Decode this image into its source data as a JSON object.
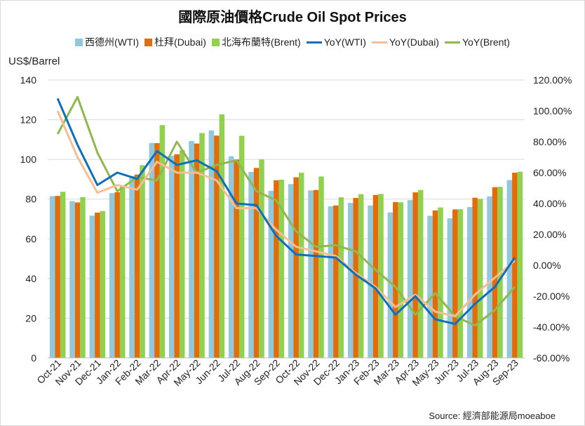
{
  "chart_data": {
    "type": "bar+line",
    "title": "國際原油價格Crude  Oil Spot Prices",
    "ylabel": "US$/Barrel",
    "source": "Source: 經濟部能源局moeaboe",
    "ylim": [
      0,
      140
    ],
    "yticks": [
      "0",
      "20",
      "40",
      "60",
      "80",
      "100",
      "120",
      "140"
    ],
    "y2lim": [
      -60,
      120
    ],
    "y2ticks": [
      "-60.00%",
      "-40.00%",
      "-20.00%",
      "0.00%",
      "20.00%",
      "40.00%",
      "60.00%",
      "80.00%",
      "100.00%",
      "120.00%"
    ],
    "grid": true,
    "legend": "top",
    "categories": [
      "Oct-21",
      "Nov-21",
      "Dec-21",
      "Jan-22",
      "Feb-22",
      "Mar-22",
      "Apr-22",
      "May-22",
      "Jun-22",
      "Jul-22",
      "Aug-22",
      "Sep-22",
      "Oct-22",
      "Nov-22",
      "Dec-22",
      "Jan-23",
      "Feb-23",
      "Mar-23",
      "Apr-23",
      "May-23",
      "Jun-23",
      "Jul-23",
      "Aug-23",
      "Sep-23"
    ],
    "bar_series": [
      {
        "name": "西德州(WTI)",
        "color": "#92c8dc",
        "values": [
          81.5,
          79,
          71.7,
          83,
          91.6,
          108.3,
          101.8,
          109.3,
          114.6,
          101.6,
          93.7,
          84.2,
          87.6,
          84.4,
          76.4,
          78.1,
          76.8,
          73.3,
          79.5,
          71.6,
          70.3,
          76,
          81.4,
          89.6
        ]
      },
      {
        "name": "杜拜(Dubai)",
        "color": "#e36c0a",
        "values": [
          81.6,
          78.3,
          73.2,
          83.5,
          92.4,
          108.2,
          102.6,
          108,
          112,
          100,
          95.7,
          89.5,
          91,
          84.6,
          76.8,
          80.6,
          82.1,
          78.5,
          83.4,
          74.3,
          74.8,
          80.7,
          86,
          93.3
        ]
      },
      {
        "name": "北海布蘭特(Brent)",
        "color": "#92d050",
        "values": [
          83.7,
          81,
          74,
          86.5,
          97.1,
          117.3,
          104.6,
          113.3,
          122.7,
          111.9,
          100,
          89.8,
          93.3,
          91.4,
          80.9,
          82.5,
          82.6,
          78.4,
          84.6,
          75.8,
          74.9,
          80.1,
          86.2,
          93.8
        ]
      }
    ],
    "line_series": [
      {
        "name": "YoY(WTI)",
        "color": "#0e6fba",
        "values": [
          108,
          78,
          52,
          60,
          56,
          74,
          65,
          68,
          61,
          40,
          39,
          19,
          7,
          6,
          5,
          -6,
          -15,
          -32,
          -20,
          -35,
          -38,
          -25,
          -14,
          5
        ]
      },
      {
        "name": "YoY(Dubai)",
        "color": "#f7be94",
        "values": [
          100,
          70,
          47,
          52,
          49,
          67,
          60,
          60,
          55,
          37,
          37,
          23,
          12,
          9,
          6,
          -5,
          -14,
          -27,
          -19,
          -30,
          -33,
          -19,
          -8,
          3
        ]
      },
      {
        "name": "YoY(Brent)",
        "color": "#8fb84f",
        "values": [
          85,
          109,
          73,
          48,
          57,
          55,
          80,
          60,
          65,
          68,
          48,
          42,
          22,
          12,
          13,
          9,
          -3,
          -14,
          -32,
          -18,
          -33,
          -39,
          -29,
          -14
        ]
      }
    ]
  }
}
